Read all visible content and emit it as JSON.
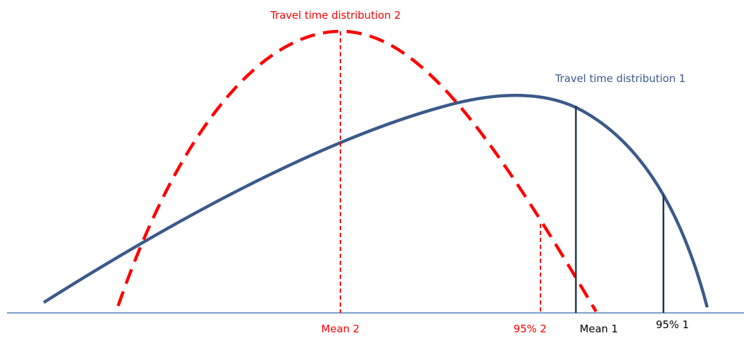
{
  "curves": {
    "distribution_2": "Travel time distribution 2",
    "distribution_1": "Travel time distribution 1"
  },
  "markers": {
    "mean_2": "Mean 2",
    "p95_2": "95% 2",
    "mean_1": "Mean 1",
    "p95_1": "95% 1"
  }
}
